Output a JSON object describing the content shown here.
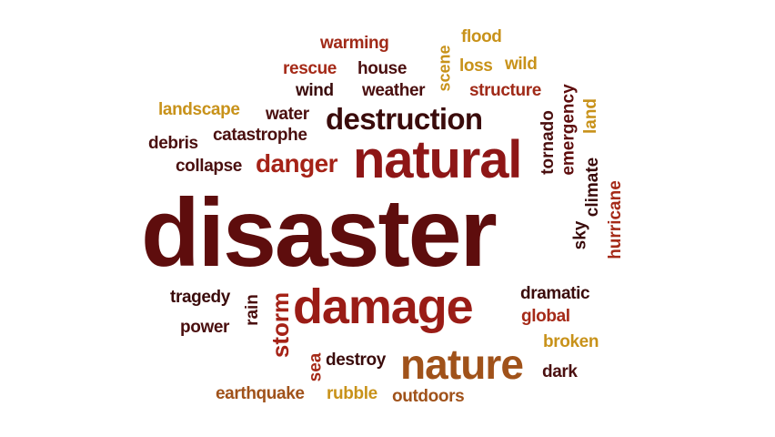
{
  "words": [
    {
      "text": "disaster",
      "color": "#5e0d0d"
    },
    {
      "text": "natural",
      "color": "#8e1616"
    },
    {
      "text": "damage",
      "color": "#9a1c16"
    },
    {
      "text": "nature",
      "color": "#a0521a"
    },
    {
      "text": "destruction",
      "color": "#3a0b0b"
    },
    {
      "text": "danger",
      "color": "#a52217"
    },
    {
      "text": "warming",
      "color": "#a02a18"
    },
    {
      "text": "flood",
      "color": "#c8921a"
    },
    {
      "text": "rescue",
      "color": "#a52a18"
    },
    {
      "text": "house",
      "color": "#4a0f0f"
    },
    {
      "text": "loss",
      "color": "#c8921a"
    },
    {
      "text": "wild",
      "color": "#c8921a"
    },
    {
      "text": "scene",
      "color": "#c8921a"
    },
    {
      "text": "wind",
      "color": "#3a0b0b"
    },
    {
      "text": "weather",
      "color": "#4a0f0f"
    },
    {
      "text": "structure",
      "color": "#a02a18"
    },
    {
      "text": "landscape",
      "color": "#c8921a"
    },
    {
      "text": "water",
      "color": "#4a0f0f"
    },
    {
      "text": "debris",
      "color": "#4a0f0f"
    },
    {
      "text": "catastrophe",
      "color": "#4a0f0f"
    },
    {
      "text": "collapse",
      "color": "#4a0f0f"
    },
    {
      "text": "tornado",
      "color": "#4a0f0f"
    },
    {
      "text": "emergency",
      "color": "#5e0d0d"
    },
    {
      "text": "land",
      "color": "#c8921a"
    },
    {
      "text": "climate",
      "color": "#3a0b0b"
    },
    {
      "text": "sky",
      "color": "#3a0b0b"
    },
    {
      "text": "hurricane",
      "color": "#a52a18"
    },
    {
      "text": "tragedy",
      "color": "#3a0b0b"
    },
    {
      "text": "rain",
      "color": "#4a0f0f"
    },
    {
      "text": "storm",
      "color": "#a52217"
    },
    {
      "text": "power",
      "color": "#4a0f0f"
    },
    {
      "text": "dramatic",
      "color": "#3a0b0b"
    },
    {
      "text": "global",
      "color": "#a52a18"
    },
    {
      "text": "broken",
      "color": "#c8921a"
    },
    {
      "text": "dark",
      "color": "#4a0f0f"
    },
    {
      "text": "sea",
      "color": "#a52a18"
    },
    {
      "text": "destroy",
      "color": "#3a0b0b"
    },
    {
      "text": "earthquake",
      "color": "#a0521a"
    },
    {
      "text": "rubble",
      "color": "#c8921a"
    },
    {
      "text": "outdoors",
      "color": "#a0521a"
    }
  ]
}
